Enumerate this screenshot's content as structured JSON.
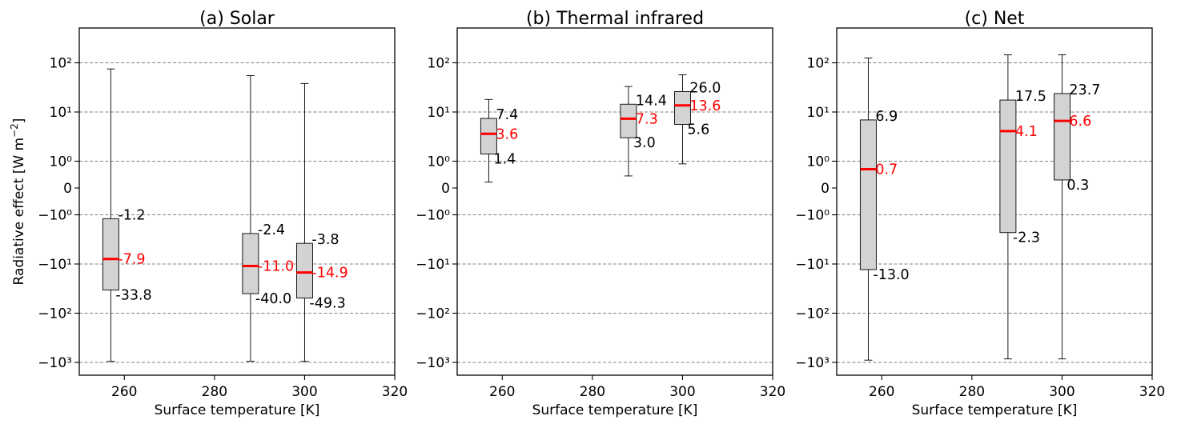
{
  "figure": {
    "ylabel": "Radiative effect [W m$^{-2}$]",
    "xlabel": "Surface temperature [K]"
  },
  "chart_data": [
    {
      "type": "box",
      "title": "(a) Solar",
      "xlabel": "Surface temperature [K]",
      "ylabel": "Radiative effect [W m⁻²]",
      "xlim": [
        250,
        320
      ],
      "xticks": [
        260,
        280,
        300,
        320
      ],
      "yscale": "symlog",
      "ylim": [
        -1150,
        260
      ],
      "yticks": [
        -1000,
        -100,
        -10,
        -1,
        0,
        1,
        10,
        100
      ],
      "yticklabels": [
        "−10³",
        "−10²",
        "−10¹",
        "−10⁰",
        "0",
        "10⁰",
        "10¹",
        "10²"
      ],
      "grid": "y dashed",
      "boxes": [
        {
          "x": 257,
          "q1": -33.8,
          "median": -7.9,
          "q3": -1.2,
          "whisker_low": -950,
          "whisker_high": 75,
          "labels": {
            "q3": "-1.2",
            "median": "-7.9",
            "q1": "-33.8"
          }
        },
        {
          "x": 288,
          "q1": -40.0,
          "median": -11.0,
          "q3": -2.4,
          "whisker_low": -950,
          "whisker_high": 55,
          "labels": {
            "q3": "-2.4",
            "median": "-11.0",
            "q1": "-40.0"
          }
        },
        {
          "x": 300,
          "q1": -49.3,
          "median": -14.9,
          "q3": -3.8,
          "whisker_low": -950,
          "whisker_high": 38,
          "labels": {
            "q3": "-3.8",
            "median": "-14.9",
            "q1": "-49.3"
          }
        }
      ]
    },
    {
      "type": "box",
      "title": "(b) Thermal infrared",
      "xlabel": "Surface temperature [K]",
      "xlim": [
        250,
        320
      ],
      "xticks": [
        260,
        280,
        300,
        320
      ],
      "yscale": "symlog",
      "ylim": [
        -1150,
        260
      ],
      "yticks": [
        -1000,
        -100,
        -10,
        -1,
        0,
        1,
        10,
        100
      ],
      "yticklabels": [
        "−10³",
        "−10²",
        "−10¹",
        "−10⁰",
        "0",
        "10⁰",
        "10¹",
        "10²"
      ],
      "grid": "y dashed",
      "boxes": [
        {
          "x": 257,
          "q1": 1.4,
          "median": 3.6,
          "q3": 7.4,
          "whisker_low": 0.22,
          "whisker_high": 18,
          "labels": {
            "q3": "7.4",
            "median": "3.6",
            "q1": "1.4"
          }
        },
        {
          "x": 288,
          "q1": 3.0,
          "median": 7.3,
          "q3": 14.4,
          "whisker_low": 0.45,
          "whisker_high": 33,
          "labels": {
            "q3": "14.4",
            "median": "7.3",
            "q1": "3.0"
          }
        },
        {
          "x": 300,
          "q1": 5.6,
          "median": 13.6,
          "q3": 26.0,
          "whisker_low": 0.9,
          "whisker_high": 57,
          "labels": {
            "q3": "26.0",
            "median": "13.6",
            "q1": "5.6"
          }
        }
      ]
    },
    {
      "type": "box",
      "title": "(c) Net",
      "xlabel": "Surface temperature [K]",
      "xlim": [
        250,
        320
      ],
      "xticks": [
        260,
        280,
        300,
        320
      ],
      "yscale": "symlog",
      "ylim": [
        -1150,
        260
      ],
      "yticks": [
        -1000,
        -100,
        -10,
        -1,
        0,
        1,
        10,
        100
      ],
      "yticklabels": [
        "−10³",
        "−10²",
        "−10¹",
        "−10⁰",
        "0",
        "10⁰",
        "10¹",
        "10²"
      ],
      "grid": "y dashed",
      "boxes": [
        {
          "x": 257,
          "q1": -13.0,
          "median": 0.7,
          "q3": 6.9,
          "whisker_low": -900,
          "whisker_high": 125,
          "labels": {
            "q3": "6.9",
            "median": "0.7",
            "q1": "-13.0"
          }
        },
        {
          "x": 288,
          "q1": -2.3,
          "median": 4.1,
          "q3": 17.5,
          "whisker_low": -850,
          "whisker_high": 145,
          "labels": {
            "q3": "17.5",
            "median": "4.1",
            "q1": "-2.3"
          }
        },
        {
          "x": 300,
          "q1": 0.3,
          "median": 6.6,
          "q3": 23.7,
          "whisker_low": -850,
          "whisker_high": 145,
          "labels": {
            "q3": "23.7",
            "median": "6.6",
            "q1": "0.3"
          }
        }
      ]
    }
  ]
}
